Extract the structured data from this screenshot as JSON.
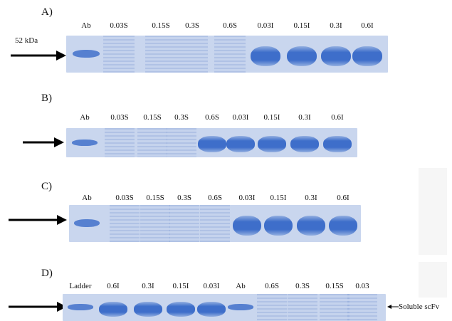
{
  "panels": [
    {
      "letter": "A)",
      "marker_label": "52 kDa",
      "lanes": [
        "Ab",
        "0.03S",
        "0.15S",
        "0.3S",
        "0.6S",
        "0.03I",
        "0.15I",
        "0.3I",
        "0.6I"
      ],
      "strong_band_lanes": [
        5,
        6,
        7,
        8
      ]
    },
    {
      "letter": "B)",
      "lanes": [
        "Ab",
        "0.03S",
        "0.15S",
        "0.3S",
        "0.6S",
        "0.03I",
        "0.15I",
        "0.3I",
        "0.6I"
      ],
      "strong_band_lanes": [
        4,
        5,
        6,
        7,
        8
      ]
    },
    {
      "letter": "C)",
      "lanes": [
        "Ab",
        "0.03S",
        "0.15S",
        "0.3S",
        "0.6S",
        "0.03I",
        "0.15I",
        "0.3I",
        "0.6I"
      ],
      "strong_band_lanes": [
        5,
        6,
        7,
        8
      ]
    },
    {
      "letter": "D)",
      "lanes": [
        "Ladder",
        "0.6I",
        "0.3I",
        "0.15I",
        "0.03I",
        "Ab",
        "0.6S",
        "0.3S",
        "0.15S",
        "0.03"
      ],
      "strong_band_lanes": [
        1,
        2,
        3,
        4
      ],
      "side_label": "Soluble scFv"
    }
  ],
  "colors": {
    "gel_background": "#c9d6ee",
    "band_blue": "#2f63c6",
    "faint_band": "#8eabdf"
  }
}
